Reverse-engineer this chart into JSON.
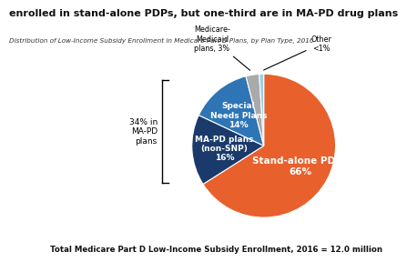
{
  "title": "enrolled in stand-alone PDPs, but one-third are in MA-PD drug plans",
  "subtitle": "Distribution of Low-Income Subsidy Enrollment in Medicare Part D Plans, by Plan Type, 2016",
  "footer": "Total Medicare Part D Low-Income Subsidy Enrollment, 2016 = 12.0 million",
  "slices": [
    66,
    16,
    14,
    3,
    1
  ],
  "colors": [
    "#E8602C",
    "#1A3A6B",
    "#2E75B6",
    "#AAAAAA",
    "#92D2EC"
  ],
  "startangle": 90,
  "brace_label": "34% in\nMA-PD\nplans",
  "background_color": "#FFFFFF",
  "internal_labels": [
    {
      "text": "Stand-alone PDPs\n66%",
      "r": 0.58,
      "fontsize": 7.5
    },
    {
      "text": "MA-PD plans\n(non-SNP)\n16%",
      "r": 0.55,
      "fontsize": 6.5
    },
    {
      "text": "Special\nNeeds Plans\n14%",
      "r": 0.55,
      "fontsize": 6.5
    }
  ],
  "external_label_medicare": "Medicare-\nMedicaid\nplans, 3%",
  "external_label_other": "Other\n<1%"
}
